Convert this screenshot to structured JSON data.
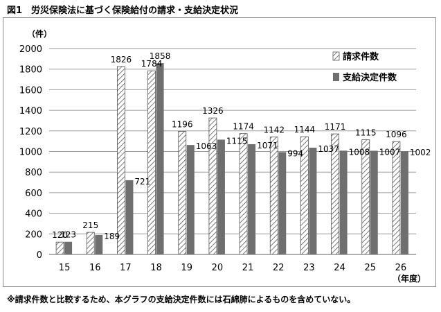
{
  "figure": {
    "title": "図1　労災保険法に基づく保険給付の請求・支給決定状況",
    "footnote": "※請求件数と比較するため、本グラフの支給決定件数には石綿肺によるものを含めていない。"
  },
  "colors": {
    "series1_hatch": "#555555",
    "series2_fill": "#6f6f6f",
    "gridline": "#9a9a9a",
    "frame": "#8c8c8c"
  },
  "chart_data": {
    "type": "bar",
    "categories": [
      "15",
      "16",
      "17",
      "18",
      "19",
      "20",
      "21",
      "22",
      "23",
      "24",
      "25",
      "26"
    ],
    "series": [
      {
        "name": "請求件数",
        "values": [
          120,
          215,
          1826,
          1784,
          1196,
          1326,
          1174,
          1142,
          1144,
          1171,
          1115,
          1096
        ]
      },
      {
        "name": "支給決定件数",
        "values": [
          123,
          189,
          721,
          1858,
          1063,
          1115,
          1071,
          994,
          1037,
          1008,
          1007,
          1002
        ]
      }
    ],
    "ylim": [
      0,
      2000
    ],
    "yticks": [
      0,
      200,
      400,
      600,
      800,
      1000,
      1200,
      1400,
      1600,
      1800,
      2000
    ],
    "ylabel": "（件）",
    "xlabel": "（年度）",
    "grid": true,
    "legend_position": "top-right"
  }
}
